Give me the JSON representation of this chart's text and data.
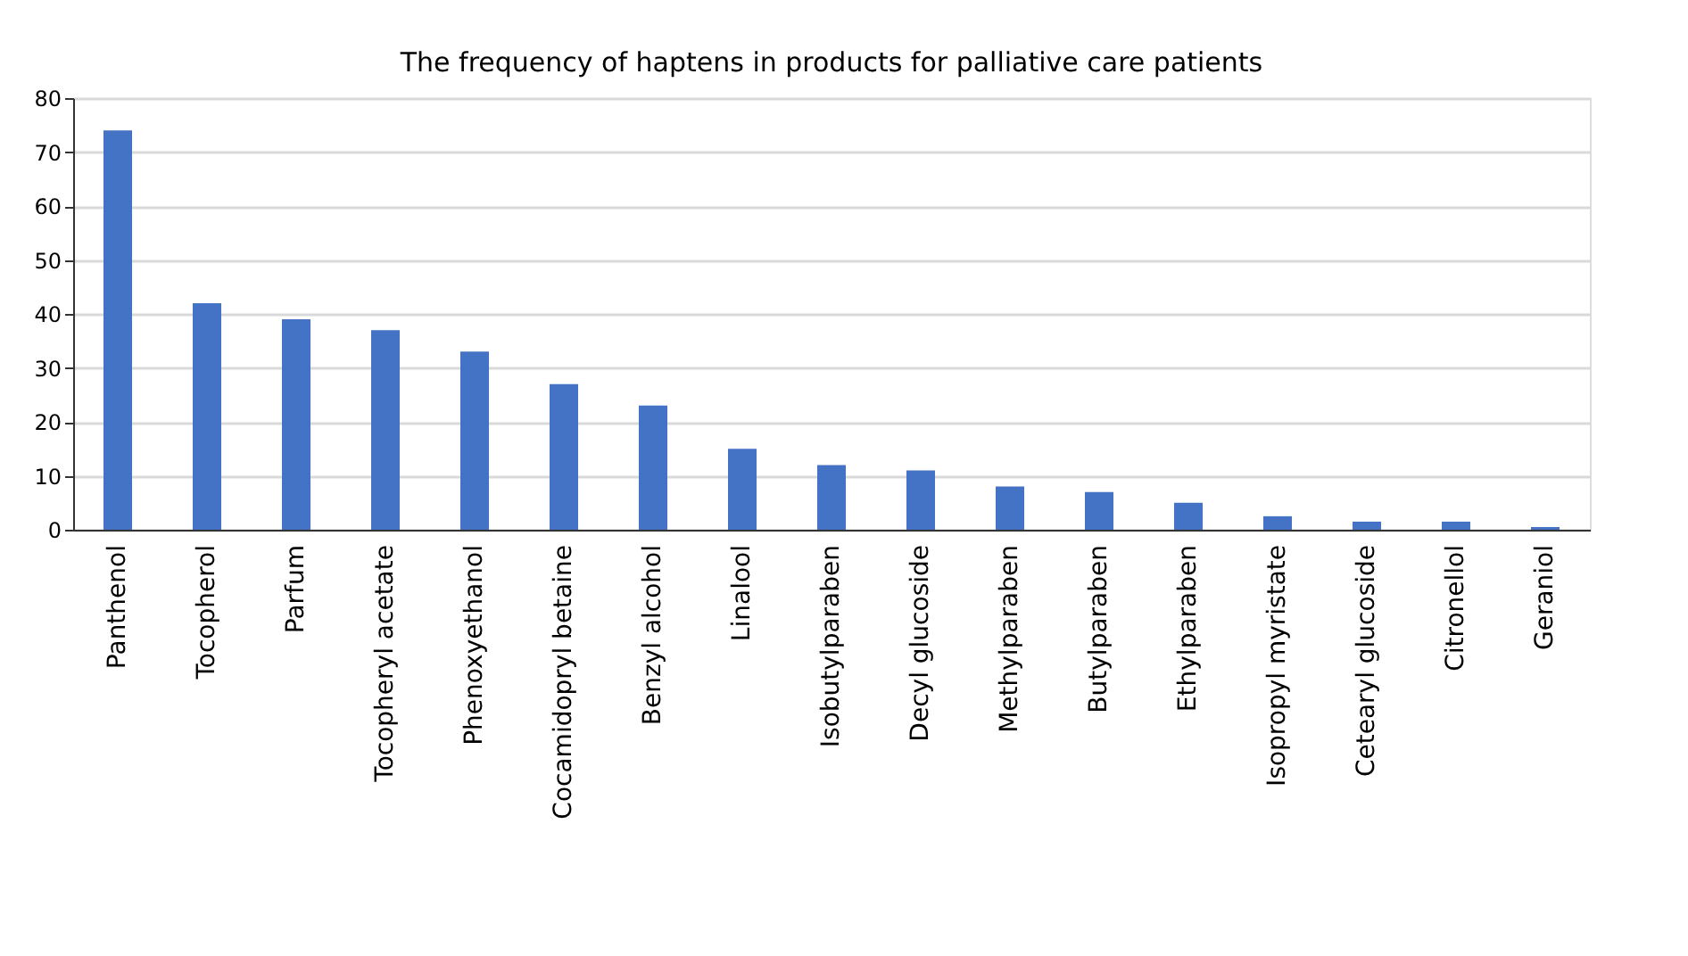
{
  "chart_data": {
    "type": "bar",
    "title": "The frequency of haptens in products for palliative care patients",
    "categories": [
      "Panthenol",
      "Tocopherol",
      "Parfum",
      "Tocopheryl acetate",
      "Phenoxyethanol",
      "Cocamidopryl betaine",
      "Benzyl alcohol",
      "Linalool",
      "Isobutylparaben",
      "Decyl glucoside",
      "Methylparaben",
      "Butylparaben",
      "Ethylparaben",
      "Isopropyl myristate",
      "Cetearyl glucoside",
      "Citronellol",
      "Geraniol"
    ],
    "values": [
      74,
      42,
      39,
      37,
      33,
      27,
      23,
      15,
      12,
      11,
      8,
      7,
      5,
      2.5,
      1.5,
      1.5,
      0.5
    ],
    "color": "#4472c4",
    "ylim": [
      0,
      80
    ],
    "yticks": [
      0,
      10,
      20,
      30,
      40,
      50,
      60,
      70,
      80
    ],
    "grid": "y"
  }
}
